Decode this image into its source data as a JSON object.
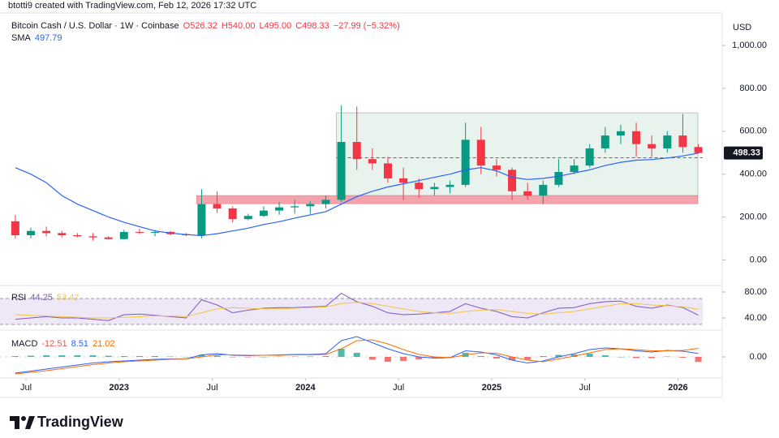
{
  "header": {
    "credit": "btotti9 created with TradingView.com, Feb 12, 2026 17:32 UTC"
  },
  "footer": {
    "brand": "TradingView"
  },
  "chart_data": [
    {
      "type": "candlestick",
      "title": "Bitcoin Cash / U.S. Dollar · 1W · Coinbase",
      "ohlc_text": [
        "O526.32",
        "H540.00",
        "L495.00",
        "C498.33",
        "−27.99 (−5.32%)"
      ],
      "y_axis_label": "USD",
      "x": [
        "2022-06",
        "2022-07",
        "2022-08",
        "2022-09",
        "2022-10",
        "2022-11",
        "2022-12",
        "2023-01",
        "2023-02",
        "2023-03",
        "2023-04",
        "2023-05",
        "2023-06",
        "2023-07",
        "2023-08",
        "2023-09",
        "2023-10",
        "2023-11",
        "2023-12",
        "2024-01",
        "2024-02",
        "2024-03",
        "2024-04",
        "2024-05",
        "2024-06",
        "2024-07",
        "2024-08",
        "2024-09",
        "2024-10",
        "2024-11",
        "2024-12",
        "2025-01",
        "2025-02",
        "2025-03",
        "2025-04",
        "2025-05",
        "2025-06",
        "2025-07",
        "2025-08",
        "2025-09",
        "2025-10",
        "2025-11",
        "2025-12",
        "2026-01",
        "2026-02"
      ],
      "open": [
        180,
        115,
        135,
        125,
        115,
        110,
        105,
        97,
        130,
        128,
        130,
        120,
        115,
        260,
        240,
        190,
        205,
        230,
        245,
        250,
        260,
        280,
        550,
        470,
        450,
        380,
        360,
        330,
        340,
        350,
        560,
        440,
        420,
        320,
        300,
        350,
        410,
        440,
        520,
        580,
        600,
        540,
        520,
        580,
        526.32
      ],
      "high": [
        210,
        150,
        155,
        135,
        125,
        125,
        110,
        140,
        145,
        140,
        135,
        125,
        330,
        320,
        250,
        215,
        250,
        270,
        280,
        275,
        300,
        720,
        715,
        520,
        480,
        430,
        380,
        360,
        370,
        640,
        620,
        470,
        430,
        360,
        370,
        470,
        470,
        540,
        620,
        630,
        640,
        580,
        600,
        680,
        540
      ],
      "low": [
        100,
        100,
        110,
        105,
        105,
        90,
        95,
        95,
        120,
        110,
        115,
        110,
        100,
        220,
        175,
        185,
        200,
        210,
        215,
        215,
        240,
        270,
        420,
        420,
        360,
        280,
        290,
        300,
        310,
        340,
        400,
        390,
        280,
        280,
        260,
        340,
        400,
        430,
        500,
        540,
        480,
        480,
        500,
        500,
        495
      ],
      "close": [
        115,
        135,
        125,
        115,
        110,
        105,
        97,
        130,
        128,
        130,
        120,
        115,
        260,
        240,
        190,
        205,
        230,
        245,
        250,
        260,
        280,
        550,
        470,
        450,
        380,
        360,
        330,
        340,
        350,
        560,
        440,
        420,
        320,
        300,
        350,
        410,
        440,
        520,
        580,
        600,
        540,
        520,
        580,
        526.32,
        498.33
      ],
      "up_color": "#089981",
      "down_color": "#f23645",
      "sma": {
        "name": "SMA",
        "color": "#2962ff",
        "values": [
          430,
          400,
          360,
          300,
          260,
          230,
          200,
          175,
          155,
          135,
          125,
          118,
          113,
          122,
          135,
          148,
          165,
          178,
          195,
          210,
          225,
          260,
          295,
          320,
          340,
          355,
          370,
          385,
          400,
          420,
          430,
          415,
          385,
          375,
          380,
          390,
          405,
          420,
          440,
          455,
          465,
          468,
          475,
          485,
          497.79
        ]
      },
      "zones": [
        {
          "from": 300,
          "to": 686,
          "start": "2024-03",
          "color": "#e8f3ee"
        },
        {
          "from": 262,
          "to": 300,
          "start": "2023-06",
          "color": "#f4a3ad"
        }
      ],
      "reference_line": {
        "value": 476,
        "start": "2024-03"
      },
      "ylim": [
        -112,
        1144
      ],
      "yticks": [
        {
          "value": 0,
          "label": "0.00"
        },
        {
          "value": 200,
          "label": "200.00"
        },
        {
          "value": 400,
          "label": "400.00"
        },
        {
          "value": 600,
          "label": "600.00"
        },
        {
          "value": 800,
          "label": "800.00"
        },
        {
          "value": 1000,
          "label": "1,000.00"
        }
      ],
      "xticks": [
        {
          "value": "2022-07",
          "label": "Jul"
        },
        {
          "value": "2023-01",
          "label": "2023"
        },
        {
          "value": "2023-07",
          "label": "Jul"
        },
        {
          "value": "2024-01",
          "label": "2024"
        },
        {
          "value": "2024-07",
          "label": "Jul"
        },
        {
          "value": "2025-01",
          "label": "2025"
        },
        {
          "value": "2025-07",
          "label": "Jul"
        },
        {
          "value": "2026-01",
          "label": "2026"
        }
      ]
    },
    {
      "type": "line",
      "title": "RSI",
      "series": [
        {
          "color": "#7e57c2",
          "values": [
            38,
            40,
            42,
            40,
            40,
            38,
            36,
            45,
            46,
            44,
            42,
            40,
            68,
            60,
            48,
            52,
            55,
            56,
            56,
            57,
            58,
            78,
            65,
            58,
            48,
            45,
            46,
            48,
            50,
            62,
            55,
            50,
            42,
            40,
            48,
            55,
            56,
            62,
            65,
            66,
            58,
            55,
            60,
            56,
            44.25
          ]
        },
        {
          "color": "#f5c542",
          "values": [
            45,
            44,
            43,
            42,
            41,
            40,
            40,
            41,
            42,
            43,
            43,
            42,
            48,
            54,
            56,
            55,
            54,
            54,
            55,
            56,
            57,
            62,
            64,
            62,
            58,
            54,
            50,
            48,
            47,
            50,
            52,
            53,
            50,
            47,
            46,
            48,
            50,
            54,
            58,
            62,
            62,
            60,
            59,
            57,
            53.42
          ]
        }
      ],
      "bands": [
        70,
        30
      ],
      "band_color": "#ede7f6",
      "ylim": [
        23.75,
        86.25
      ],
      "yticks": [
        {
          "value": 40,
          "label": "40.00"
        },
        {
          "value": 80,
          "label": "80.00"
        }
      ]
    },
    {
      "type": "macd",
      "title": "MACD",
      "histogram": {
        "color_up": "#26a69a",
        "color_down": "#ef5350",
        "values": [
          2,
          3,
          4,
          4,
          4,
          4,
          3,
          2,
          2,
          2,
          1,
          0,
          5,
          3,
          -1,
          -1,
          0,
          1,
          1,
          1,
          2,
          20,
          10,
          -7,
          -12,
          -10,
          -6,
          -3,
          0,
          10,
          2,
          -4,
          -8,
          -7,
          2,
          5,
          6,
          8,
          4,
          0,
          -3,
          -3,
          1,
          -2,
          -12.51
        ]
      },
      "series": [
        {
          "color": "#2962ff",
          "values": [
            -40,
            -35,
            -30,
            -25,
            -20,
            -15,
            -12,
            -10,
            -8,
            -6,
            -5,
            -5,
            5,
            8,
            4,
            3,
            4,
            5,
            6,
            6,
            8,
            40,
            50,
            35,
            20,
            8,
            0,
            -3,
            -2,
            15,
            12,
            5,
            -8,
            -15,
            -10,
            0,
            8,
            18,
            22,
            20,
            15,
            12,
            16,
            14,
            8.51
          ]
        },
        {
          "color": "#ff6d00",
          "values": [
            -42,
            -38,
            -34,
            -29,
            -24,
            -19,
            -15,
            -12,
            -10,
            -8,
            -6,
            -5,
            0,
            5,
            5,
            4,
            4,
            4,
            5,
            5,
            6,
            20,
            40,
            42,
            32,
            18,
            6,
            0,
            -2,
            5,
            10,
            9,
            0,
            -8,
            -12,
            -5,
            2,
            10,
            18,
            20,
            18,
            15,
            15,
            16,
            21.02
          ]
        }
      ],
      "ylim": [
        -50,
        60
      ],
      "yticks": [
        {
          "value": 0,
          "label": "0.00"
        }
      ]
    }
  ]
}
